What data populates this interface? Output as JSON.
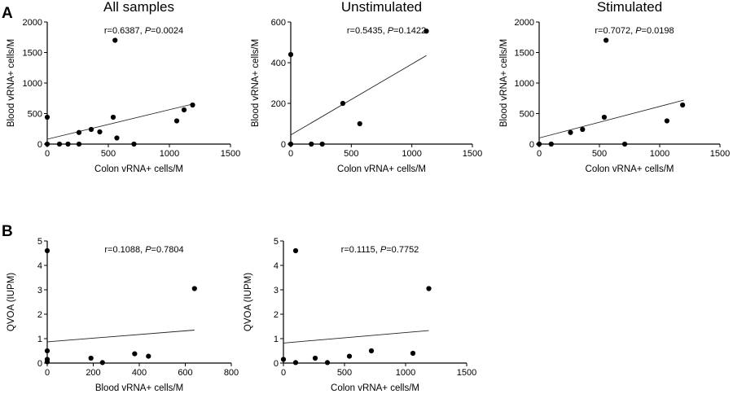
{
  "panel_labels": [
    "A",
    "B"
  ],
  "chart_data": [
    {
      "type": "scatter",
      "title": "All samples",
      "xlabel": "Colon vRNA+ cells/M",
      "ylabel": "Blood vRNA+ cells/M",
      "xlim": [
        0,
        1500
      ],
      "ylim": [
        0,
        2000
      ],
      "xticks": [
        0,
        500,
        1000,
        1500
      ],
      "yticks": [
        0,
        500,
        1000,
        1500,
        2000
      ],
      "annotation": {
        "r": "r=0.6387, ",
        "p_label": "P",
        "p_value": "=0.0024"
      },
      "points": [
        [
          0,
          0
        ],
        [
          0,
          440
        ],
        [
          100,
          0
        ],
        [
          170,
          0
        ],
        [
          260,
          0
        ],
        [
          260,
          190
        ],
        [
          360,
          240
        ],
        [
          430,
          200
        ],
        [
          540,
          440
        ],
        [
          555,
          1700
        ],
        [
          570,
          100
        ],
        [
          710,
          0
        ],
        [
          1060,
          380
        ],
        [
          1120,
          560
        ],
        [
          1190,
          640
        ]
      ],
      "fit": [
        [
          0,
          80
        ],
        [
          1200,
          660
        ]
      ],
      "grid": false
    },
    {
      "type": "scatter",
      "title": "Unstimulated",
      "xlabel": "Colon vRNA+ cells/M",
      "ylabel": "Blood vRNA+ cells/M",
      "xlim": [
        0,
        1500
      ],
      "ylim": [
        0,
        600
      ],
      "xticks": [
        0,
        500,
        1000,
        1500
      ],
      "yticks": [
        0,
        200,
        400,
        600
      ],
      "annotation": {
        "r": "r=0.5435, ",
        "p_label": "P",
        "p_value": "=0.1422"
      },
      "points": [
        [
          0,
          0
        ],
        [
          0,
          440
        ],
        [
          170,
          0
        ],
        [
          260,
          0
        ],
        [
          430,
          200
        ],
        [
          570,
          100
        ],
        [
          1120,
          555
        ]
      ],
      "fit": [
        [
          0,
          45
        ],
        [
          1120,
          435
        ]
      ],
      "grid": false
    },
    {
      "type": "scatter",
      "title": "Stimulated",
      "xlabel": "Colon vRNA+ cells/M",
      "ylabel": "Blood vRNA+ cells/M",
      "xlim": [
        0,
        1500
      ],
      "ylim": [
        0,
        2000
      ],
      "xticks": [
        0,
        500,
        1000,
        1500
      ],
      "yticks": [
        0,
        500,
        1000,
        1500,
        2000
      ],
      "annotation": {
        "r": "r=0.7072, ",
        "p_label": "P",
        "p_value": "=0.0198"
      },
      "points": [
        [
          0,
          0
        ],
        [
          100,
          0
        ],
        [
          260,
          190
        ],
        [
          360,
          240
        ],
        [
          540,
          440
        ],
        [
          555,
          1700
        ],
        [
          710,
          0
        ],
        [
          1060,
          380
        ],
        [
          1190,
          640
        ]
      ],
      "fit": [
        [
          0,
          100
        ],
        [
          1200,
          720
        ]
      ],
      "grid": false
    },
    {
      "type": "scatter",
      "title": "",
      "xlabel": "Blood vRNA+ cells/M",
      "ylabel": "QVOA (IUPM)",
      "xlim": [
        0,
        800
      ],
      "ylim": [
        0,
        5
      ],
      "xticks": [
        0,
        200,
        400,
        600,
        800
      ],
      "yticks": [
        0,
        1,
        2,
        3,
        4,
        5
      ],
      "annotation": {
        "r": "r=0.1088, ",
        "p_label": "P",
        "p_value": "=0.7804"
      },
      "points": [
        [
          0,
          4.6
        ],
        [
          0,
          0.5
        ],
        [
          0,
          0.15
        ],
        [
          0,
          0.05
        ],
        [
          190,
          0.2
        ],
        [
          240,
          0.02
        ],
        [
          380,
          0.38
        ],
        [
          440,
          0.28
        ],
        [
          640,
          3.05
        ]
      ],
      "fit": [
        [
          0,
          0.87
        ],
        [
          640,
          1.35
        ]
      ],
      "grid": false
    },
    {
      "type": "scatter",
      "title": "",
      "xlabel": "Colon vRNA+ cells/M",
      "ylabel": "QVOA (IUPM)",
      "xlim": [
        0,
        1500
      ],
      "ylim": [
        0,
        5
      ],
      "xticks": [
        0,
        500,
        1000,
        1500
      ],
      "yticks": [
        0,
        1,
        2,
        3,
        4,
        5
      ],
      "annotation": {
        "r": "r=0.1115, ",
        "p_label": "P",
        "p_value": "=0.7752"
      },
      "points": [
        [
          0,
          0.15
        ],
        [
          100,
          4.6
        ],
        [
          100,
          0.02
        ],
        [
          260,
          0.2
        ],
        [
          360,
          0.02
        ],
        [
          540,
          0.28
        ],
        [
          720,
          0.5
        ],
        [
          1060,
          0.4
        ],
        [
          1190,
          3.05
        ]
      ],
      "fit": [
        [
          0,
          0.82
        ],
        [
          1190,
          1.33
        ]
      ],
      "grid": false
    }
  ]
}
